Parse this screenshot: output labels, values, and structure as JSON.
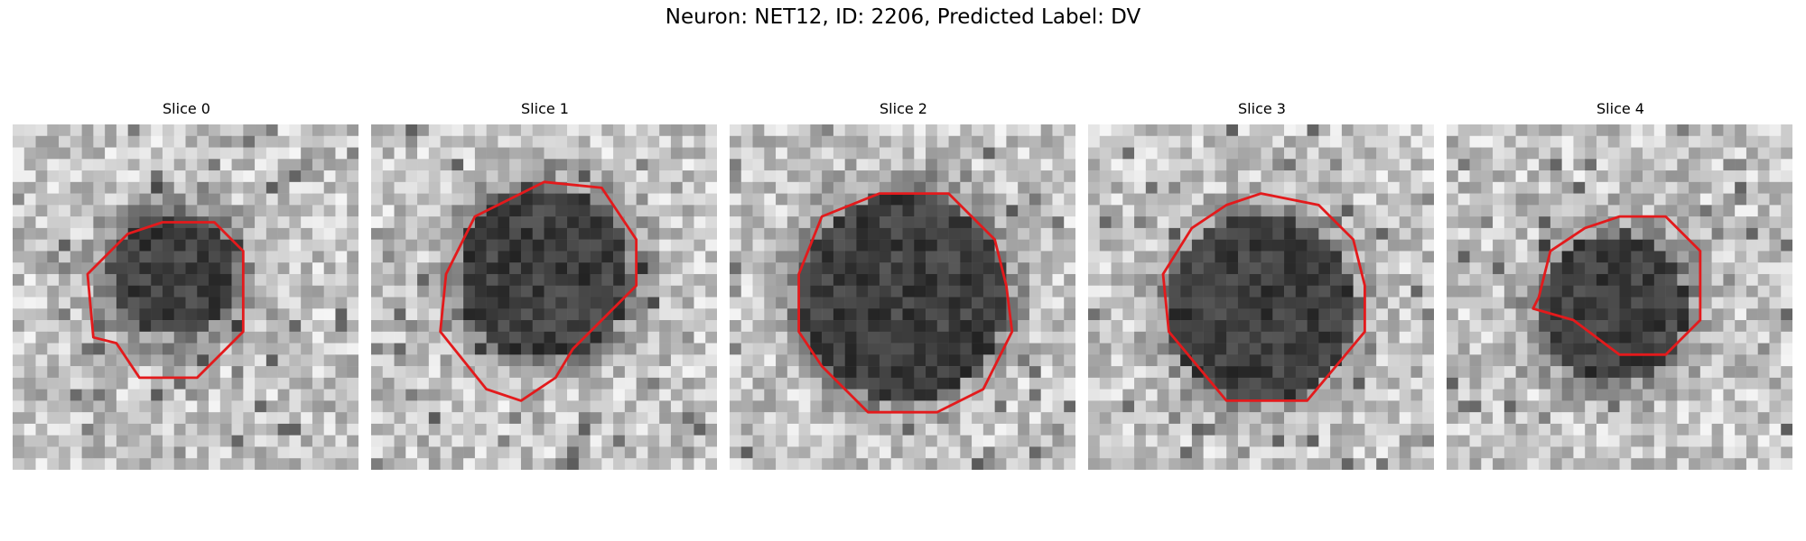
{
  "figure": {
    "title": "Neuron: NET12, ID: 2206, Predicted Label: DV"
  },
  "panels": [
    {
      "title": "Slice 0"
    },
    {
      "title": "Slice 1"
    },
    {
      "title": "Slice 2"
    },
    {
      "title": "Slice 3"
    },
    {
      "title": "Slice 4"
    }
  ],
  "colors": {
    "contour": "#e31a1c",
    "background": "#ffffff"
  }
}
